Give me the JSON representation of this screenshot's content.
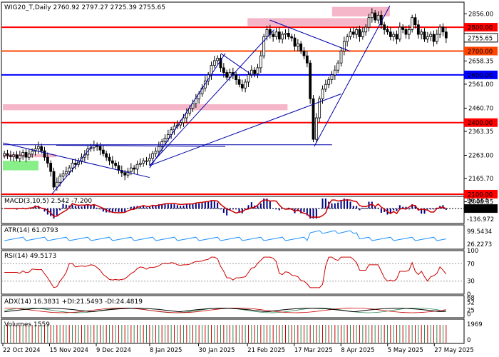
{
  "chart_data": {
    "type": "candlestick",
    "symbol": "WIG20_T,Daily",
    "ohlc_header": "2760.92 2797.27 2725.39 2755.65",
    "last_price": "2755.65",
    "price_axis_ticks": [
      "2856.00",
      "2758.65",
      "2658.35",
      "2561.00",
      "2460.70",
      "2363.35",
      "2263.00",
      "2165.70",
      "2068.35"
    ],
    "ylim": [
      2052,
      2905
    ],
    "level_lines": [
      {
        "value": 2800,
        "label": "2800.00",
        "color": "#ff0000"
      },
      {
        "value": 2700,
        "label": "2700.00",
        "color": "#ff4500"
      },
      {
        "value": 2600,
        "label": "2600.00",
        "color": "#0000ff"
      },
      {
        "value": 2400,
        "label": "2400.00",
        "color": "#ff0000"
      },
      {
        "value": 2100,
        "label": "2100.00",
        "color": "#ff0000"
      }
    ],
    "zones": [
      {
        "x_from": 0.74,
        "x_to": 0.87,
        "y_from": 2845,
        "y_to": 2885,
        "color": "#f4b6c8"
      },
      {
        "x_from": 0.55,
        "x_to": 0.82,
        "y_from": 2805,
        "y_to": 2838,
        "color": "#f4b6c8"
      },
      {
        "x_from": 0.0,
        "x_to": 0.64,
        "y_from": 2452,
        "y_to": 2477,
        "color": "#f4b6c8"
      },
      {
        "x_from": 0.0,
        "x_to": 0.08,
        "y_from": 2200,
        "y_to": 2240,
        "color": "#88ee88"
      },
      {
        "x_from": 0.0,
        "x_to": 0.12,
        "y_from": 2255,
        "y_to": 2268,
        "color": "#f4b6c8"
      }
    ],
    "x_ticks": [
      "22 Oct 2024",
      "15 Nov 2024",
      "9 Dec 2024",
      "8 Jan 2025",
      "30 Jan 2025",
      "21 Feb 2025",
      "17 Mar 2025",
      "8 Apr 2025",
      "5 May 2025",
      "27 May 2025"
    ],
    "closes": [
      2270,
      2262,
      2258,
      2265,
      2250,
      2262,
      2275,
      2255,
      2268,
      2280,
      2290,
      2300,
      2282,
      2255,
      2230,
      2195,
      2130,
      2150,
      2175,
      2185,
      2195,
      2210,
      2230,
      2225,
      2240,
      2255,
      2265,
      2290,
      2295,
      2305,
      2300,
      2285,
      2270,
      2255,
      2240,
      2230,
      2220,
      2200,
      2190,
      2180,
      2195,
      2210,
      2205,
      2225,
      2230,
      2240,
      2240,
      2250,
      2270,
      2280,
      2300,
      2320,
      2335,
      2350,
      2370,
      2385,
      2390,
      2400,
      2420,
      2440,
      2460,
      2480,
      2500,
      2520,
      2545,
      2575,
      2600,
      2640,
      2660,
      2670,
      2630,
      2610,
      2590,
      2610,
      2600,
      2580,
      2560,
      2545,
      2570,
      2600,
      2620,
      2605,
      2630,
      2680,
      2760,
      2790,
      2770,
      2760,
      2780,
      2750,
      2770,
      2775,
      2760,
      2755,
      2720,
      2730,
      2700,
      2680,
      2650,
      2500,
      2330,
      2420,
      2500,
      2540,
      2560,
      2580,
      2600,
      2620,
      2650,
      2700,
      2740,
      2760,
      2780,
      2770,
      2790,
      2760,
      2780,
      2800,
      2840,
      2860,
      2830,
      2850,
      2810,
      2790,
      2780,
      2760,
      2770,
      2750,
      2800,
      2790,
      2770,
      2790,
      2840,
      2810,
      2770,
      2780,
      2750,
      2760,
      2770,
      2740,
      2770,
      2800,
      2780,
      2755
    ],
    "indicators": {
      "macd": {
        "label": "MACD(3,10,5) 2.542 -7.200",
        "ticks": [
          "96.564",
          "0.00",
          "-136.972"
        ]
      },
      "atr": {
        "label": "ATR(14) 61.0793",
        "ticks": [
          "99.5434",
          "26.2273"
        ]
      },
      "rsi": {
        "label": "RSI(14) 49.5173",
        "ticks": [
          "100",
          "70",
          "30",
          "0"
        ]
      },
      "adx": {
        "label": "ADX(14) 16.3831 +DI:21.5493 -DI:24.4819",
        "ticks": [
          "68",
          "52",
          "25",
          "0"
        ]
      },
      "volumes": {
        "label": "Volumes 1559",
        "ticks": [
          "1969",
          "0"
        ]
      }
    }
  }
}
